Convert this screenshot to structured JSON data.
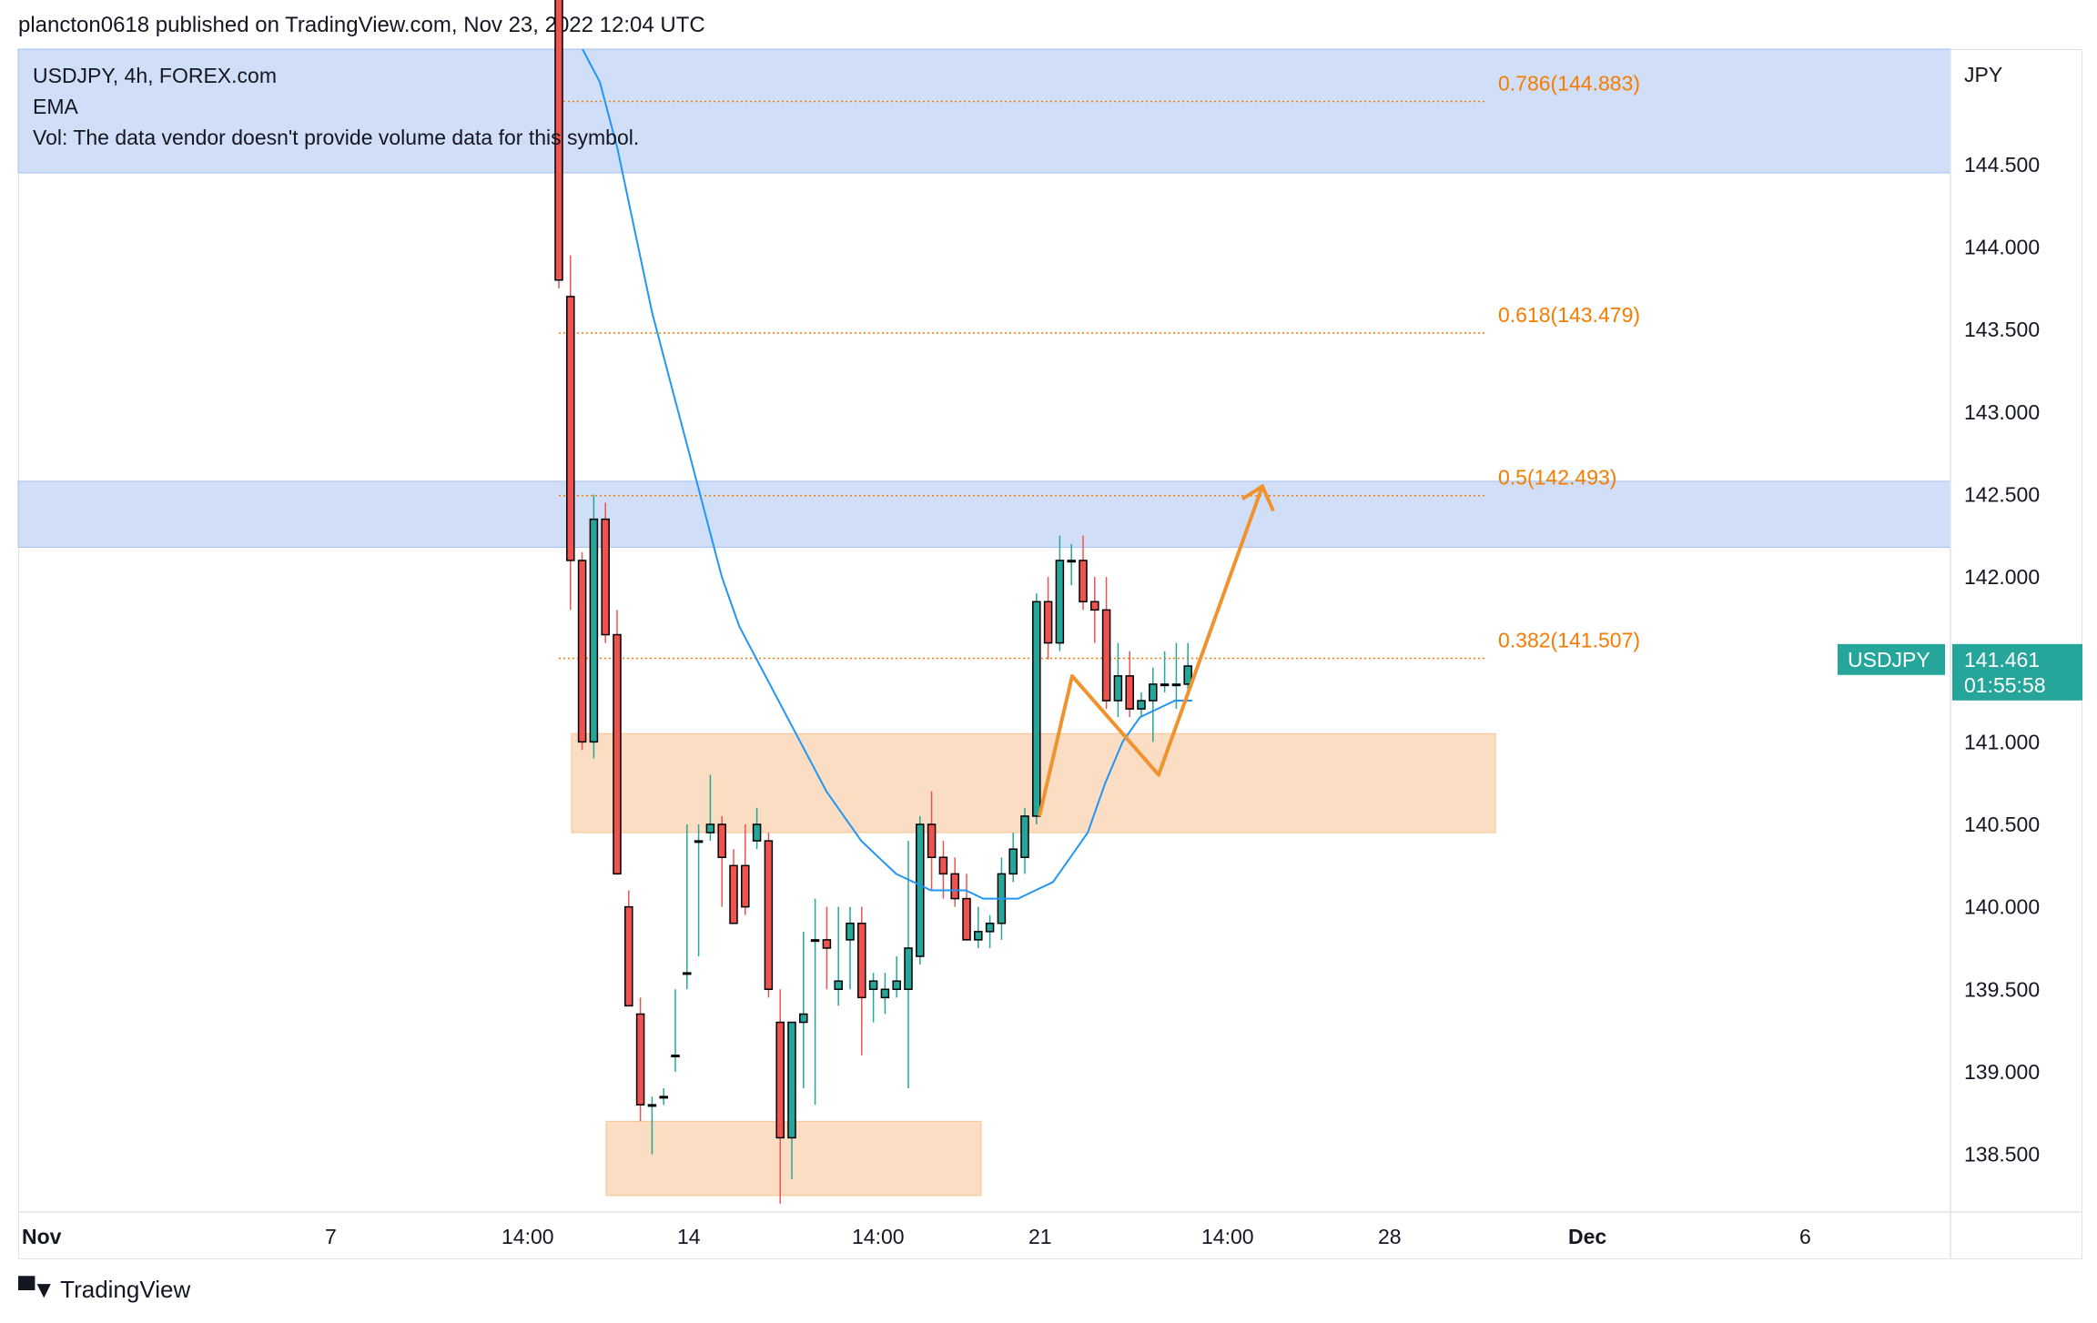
{
  "header": {
    "published": "plancton0618 published on TradingView.com, Nov 23, 2022 12:04 UTC"
  },
  "legend": {
    "symbol_line": "USDJPY, 4h, FOREX.com",
    "indicator": "EMA",
    "volume_note": "Vol: The data vendor doesn't provide volume data for this symbol."
  },
  "footer": {
    "brand": "TradingView"
  },
  "colors": {
    "up": "#26a69a",
    "down": "#ef5350",
    "ema": "#2196f3",
    "fib": "#f57c00",
    "zone_blue": "#cfddf7",
    "zone_orange": "#fbdcc0",
    "tag": "#26a69a"
  },
  "chart_data": {
    "type": "candlestick",
    "symbol": "USDJPY",
    "timeframe": "4h",
    "currency": "JPY",
    "ylim": [
      138.15,
      145.2
    ],
    "y_ticks": [
      "144.500",
      "144.000",
      "143.500",
      "143.000",
      "142.500",
      "142.000",
      "141.500",
      "141.000",
      "140.500",
      "140.000",
      "139.500",
      "139.000",
      "138.500"
    ],
    "x_ticks": [
      "Nov",
      "7",
      "14:00",
      "14",
      "14:00",
      "21",
      "14:00",
      "28",
      "Dec",
      "6"
    ],
    "last_price": {
      "label": "USDJPY",
      "value": "141.461",
      "countdown": "01:55:58"
    },
    "fib_levels": [
      {
        "label": "0.786(144.883)",
        "value": 144.883
      },
      {
        "label": "0.618(143.479)",
        "value": 143.479
      },
      {
        "label": "0.5(142.493)",
        "value": 142.493
      },
      {
        "label": "0.382(141.507)",
        "value": 141.507
      }
    ],
    "zones": [
      {
        "kind": "resistance",
        "from": 144.45,
        "to": 145.2
      },
      {
        "kind": "resistance",
        "from": 142.18,
        "to": 142.58
      },
      {
        "kind": "support",
        "from": 140.45,
        "to": 141.05
      },
      {
        "kind": "support",
        "from": 138.25,
        "to": 138.7
      }
    ],
    "candles": [
      [
        145.6,
        145.9,
        143.75,
        143.8
      ],
      [
        143.7,
        143.95,
        141.8,
        142.1
      ],
      [
        142.1,
        142.15,
        140.95,
        141.0
      ],
      [
        141.0,
        142.5,
        140.9,
        142.35
      ],
      [
        142.35,
        142.45,
        141.6,
        141.65
      ],
      [
        141.65,
        141.8,
        140.2,
        140.2
      ],
      [
        140.0,
        140.1,
        139.4,
        139.4
      ],
      [
        139.35,
        139.45,
        138.7,
        138.8
      ],
      [
        138.8,
        138.85,
        138.5,
        138.8
      ],
      [
        138.85,
        138.9,
        138.8,
        138.85
      ],
      [
        139.1,
        139.5,
        139.0,
        139.1
      ],
      [
        139.6,
        140.5,
        139.5,
        139.6
      ],
      [
        140.4,
        140.5,
        139.7,
        140.4
      ],
      [
        140.45,
        140.8,
        140.4,
        140.5
      ],
      [
        140.5,
        140.55,
        140.0,
        140.3
      ],
      [
        140.25,
        140.35,
        139.9,
        139.9
      ],
      [
        140.25,
        140.5,
        139.95,
        140.0
      ],
      [
        140.4,
        140.6,
        140.35,
        140.5
      ],
      [
        140.4,
        140.45,
        139.45,
        139.5
      ],
      [
        139.3,
        139.5,
        138.2,
        138.6
      ],
      [
        138.6,
        139.3,
        138.35,
        139.3
      ],
      [
        139.3,
        139.85,
        138.9,
        139.35
      ],
      [
        139.8,
        140.05,
        138.8,
        139.8
      ],
      [
        139.8,
        140.0,
        139.5,
        139.75
      ],
      [
        139.5,
        140.0,
        139.4,
        139.55
      ],
      [
        139.8,
        140.0,
        139.5,
        139.9
      ],
      [
        139.9,
        140.0,
        139.1,
        139.45
      ],
      [
        139.5,
        139.6,
        139.3,
        139.55
      ],
      [
        139.45,
        139.6,
        139.35,
        139.5
      ],
      [
        139.5,
        139.7,
        139.45,
        139.55
      ],
      [
        139.5,
        140.4,
        138.9,
        139.75
      ],
      [
        139.7,
        140.55,
        139.65,
        140.5
      ],
      [
        140.5,
        140.7,
        140.1,
        140.3
      ],
      [
        140.3,
        140.4,
        140.05,
        140.2
      ],
      [
        140.2,
        140.3,
        140.0,
        140.05
      ],
      [
        140.05,
        140.2,
        139.8,
        139.8
      ],
      [
        139.8,
        140.0,
        139.75,
        139.85
      ],
      [
        139.85,
        139.95,
        139.75,
        139.9
      ],
      [
        139.9,
        140.3,
        139.8,
        140.2
      ],
      [
        140.2,
        140.45,
        140.15,
        140.35
      ],
      [
        140.3,
        140.6,
        140.2,
        140.55
      ],
      [
        140.55,
        141.9,
        140.5,
        141.85
      ],
      [
        141.85,
        142.0,
        141.5,
        141.6
      ],
      [
        141.6,
        142.25,
        141.55,
        142.1
      ],
      [
        142.1,
        142.2,
        141.95,
        142.1
      ],
      [
        142.1,
        142.25,
        141.8,
        141.85
      ],
      [
        141.85,
        142.0,
        141.6,
        141.8
      ],
      [
        141.8,
        142.0,
        141.2,
        141.25
      ],
      [
        141.25,
        141.6,
        141.15,
        141.4
      ],
      [
        141.4,
        141.55,
        141.15,
        141.2
      ],
      [
        141.2,
        141.3,
        141.15,
        141.25
      ],
      [
        141.25,
        141.45,
        141.0,
        141.35
      ],
      [
        141.35,
        141.55,
        141.3,
        141.35
      ],
      [
        141.35,
        141.6,
        141.2,
        141.35
      ],
      [
        141.35,
        141.6,
        141.3,
        141.46
      ]
    ],
    "ema": [
      145.2,
      145.0,
      144.6,
      144.1,
      143.6,
      143.2,
      142.8,
      142.4,
      142.0,
      141.7,
      141.5,
      141.3,
      141.1,
      140.9,
      140.7,
      140.55,
      140.4,
      140.3,
      140.2,
      140.15,
      140.1,
      140.1,
      140.1,
      140.05,
      140.05,
      140.05,
      140.1,
      140.15,
      140.3,
      140.45,
      140.75,
      141.0,
      141.15,
      141.2,
      141.25,
      141.25
    ],
    "annotation_path": [
      [
        140.55
      ],
      [
        141.4
      ],
      [
        140.8
      ],
      [
        142.55
      ]
    ]
  }
}
